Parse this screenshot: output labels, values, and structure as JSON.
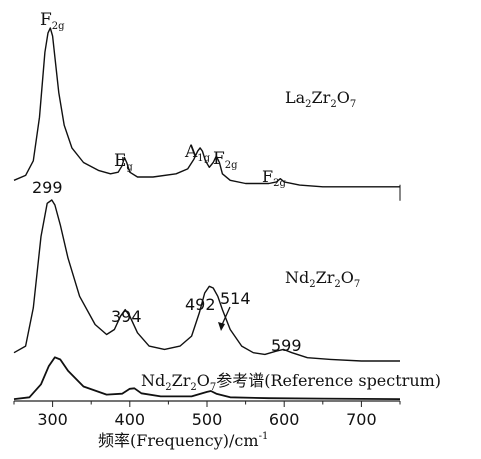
{
  "chart_data": {
    "type": "line",
    "xlabel": "频率(Frequency)/cm⁻¹",
    "ylabel": "",
    "xlim": [
      250,
      750
    ],
    "x_ticks": [
      "300",
      "400",
      "500",
      "600",
      "700"
    ],
    "grid": false,
    "series": [
      {
        "name": "La₂Zr₂O₇",
        "x": [
          250,
          265,
          275,
          283,
          290,
          294,
          297,
          300,
          303,
          308,
          315,
          325,
          340,
          360,
          375,
          385,
          390,
          393,
          396,
          400,
          410,
          430,
          460,
          475,
          483,
          488,
          491,
          494,
          498,
          503,
          508,
          512,
          516,
          520,
          530,
          550,
          580,
          590,
          595,
          600,
          620,
          650,
          700,
          750
        ],
        "y": [
          0.06,
          0.09,
          0.18,
          0.45,
          0.85,
          0.97,
          1.0,
          0.95,
          0.82,
          0.6,
          0.4,
          0.26,
          0.17,
          0.12,
          0.1,
          0.11,
          0.15,
          0.2,
          0.17,
          0.11,
          0.08,
          0.08,
          0.1,
          0.13,
          0.19,
          0.24,
          0.26,
          0.24,
          0.18,
          0.14,
          0.17,
          0.21,
          0.17,
          0.1,
          0.06,
          0.04,
          0.04,
          0.05,
          0.07,
          0.05,
          0.03,
          0.02,
          0.02,
          0.02
        ]
      },
      {
        "name": "Nd₂Zr₂O₇",
        "x": [
          250,
          265,
          275,
          285,
          293,
          299,
          303,
          310,
          320,
          335,
          355,
          370,
          380,
          388,
          394,
          400,
          410,
          425,
          445,
          465,
          480,
          490,
          497,
          503,
          508,
          514,
          520,
          530,
          545,
          560,
          575,
          590,
          599,
          610,
          630,
          660,
          700,
          750
        ],
        "y": [
          0.08,
          0.12,
          0.35,
          0.78,
          0.98,
          1.0,
          0.97,
          0.85,
          0.65,
          0.42,
          0.25,
          0.19,
          0.22,
          0.3,
          0.34,
          0.3,
          0.2,
          0.12,
          0.1,
          0.12,
          0.18,
          0.32,
          0.44,
          0.48,
          0.47,
          0.42,
          0.34,
          0.22,
          0.12,
          0.08,
          0.07,
          0.09,
          0.1,
          0.08,
          0.05,
          0.04,
          0.03,
          0.03
        ]
      },
      {
        "name": "Nd₂Zr₂O₇参考谱(Reference spectrum)",
        "x": [
          250,
          270,
          285,
          295,
          303,
          310,
          320,
          340,
          370,
          390,
          400,
          406,
          415,
          440,
          480,
          500,
          505,
          512,
          530,
          580,
          650,
          750
        ],
        "y": [
          0.02,
          0.06,
          0.35,
          0.75,
          0.95,
          0.9,
          0.65,
          0.3,
          0.12,
          0.14,
          0.25,
          0.26,
          0.15,
          0.08,
          0.08,
          0.18,
          0.2,
          0.14,
          0.06,
          0.04,
          0.03,
          0.02
        ]
      }
    ],
    "annotations": {
      "la_peaks": [
        {
          "main": "F",
          "sub": "2g",
          "x": 297
        },
        {
          "main": "E",
          "sub": "g",
          "x": 393
        },
        {
          "main": "A",
          "sub": "1g",
          "x": 491
        },
        {
          "main": "F",
          "sub": "2g",
          "x": 512
        },
        {
          "main": "F",
          "sub": "2g",
          "x": 595
        }
      ],
      "nd_peaks": [
        "299",
        "394",
        "492",
        "514",
        "599"
      ]
    },
    "series_labels": {
      "la": {
        "p1": "La",
        "s1": "2",
        "p2": "Zr",
        "s2": "2",
        "p3": "O",
        "s3": "7"
      },
      "nd": {
        "p1": "Nd",
        "s1": "2",
        "p2": "Zr",
        "s2": "2",
        "p3": "O",
        "s3": "7"
      },
      "ref": {
        "p1": "Nd",
        "s1": "2",
        "p2": "Zr",
        "s2": "2",
        "p3": "O",
        "s3": "7",
        "suffix": "参考谱(Reference spectrum)"
      }
    },
    "xlabel_parts": {
      "main": "频率(Frequency)/cm",
      "sup": "-1"
    }
  }
}
